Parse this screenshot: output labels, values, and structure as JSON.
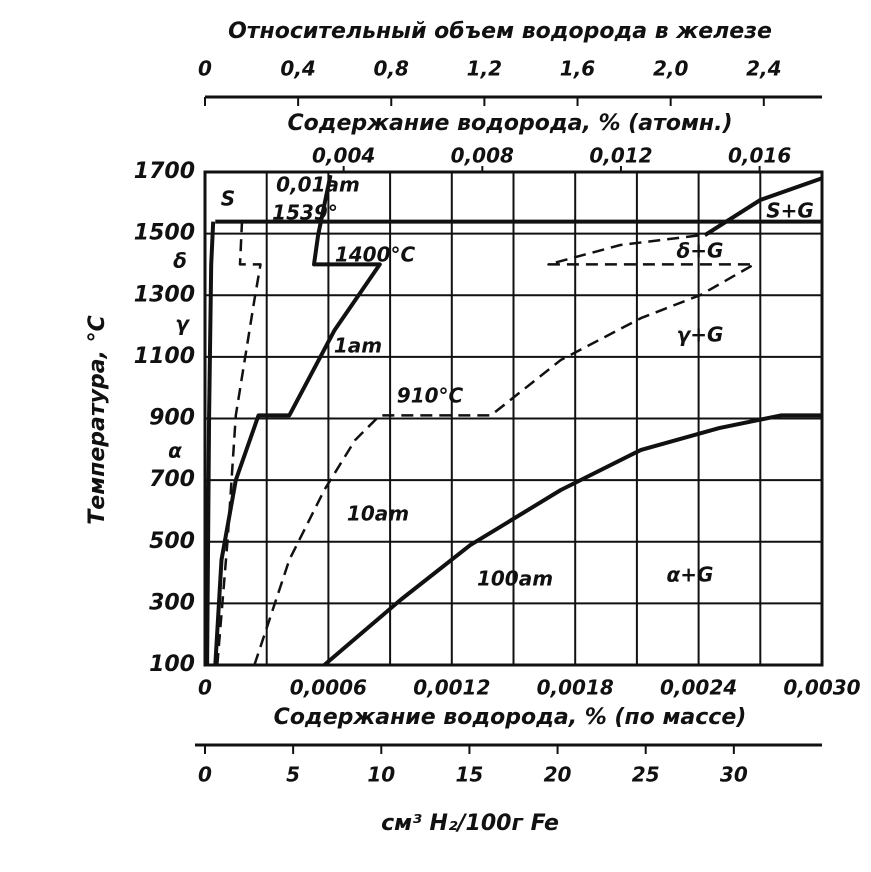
{
  "chart_data": {
    "type": "line",
    "ylabel": "Температура, °C",
    "xlabel": "Содержание водорода, % (по массе)",
    "x2label": "Содержание водорода, % (атомн.)",
    "x3label": "см³ H₂/100г Fe",
    "x4label": "Относительный объем водорода в железе",
    "xlim": [
      0,
      0.003
    ],
    "xticks": [
      0,
      {
        "value": 0.0006,
        "label": "0,0006"
      },
      {
        "value": 0.0012,
        "label": "0,0012"
      },
      {
        "value": 0.0018,
        "label": "0,0018"
      },
      {
        "value": 0.0024,
        "label": "0,0024"
      },
      {
        "value": 0.003,
        "label": "0,0030"
      }
    ],
    "xminorticks": [
      0.0003,
      0.0009,
      0.0015,
      0.0021,
      0.0027
    ],
    "ylim": [
      100,
      1700
    ],
    "yticks": [
      100,
      300,
      500,
      700,
      900,
      1100,
      1300,
      1500,
      1700
    ],
    "x2lim": [
      0,
      0.0178
    ],
    "x2ticks": [
      {
        "value": 0.004,
        "label": "0,004"
      },
      {
        "value": 0.008,
        "label": "0,008"
      },
      {
        "value": 0.012,
        "label": "0,012"
      },
      {
        "value": 0.016,
        "label": "0,016"
      }
    ],
    "x3lim": [
      0,
      35
    ],
    "x3ticks": [
      0,
      5,
      10,
      15,
      20,
      25,
      30
    ],
    "x4lim": [
      0,
      2.65
    ],
    "x4ticks": [
      0,
      {
        "value": 0.4,
        "label": "0,4"
      },
      {
        "value": 0.8,
        "label": "0,8"
      },
      {
        "value": 1.2,
        "label": "1,2"
      },
      {
        "value": 1.6,
        "label": "1,6"
      },
      {
        "value": 2.0,
        "label": "2,0"
      },
      {
        "value": 2.4,
        "label": "2,4"
      }
    ],
    "grid": true,
    "color": "#111111",
    "series": [
      {
        "name": "0,01am",
        "style": "solid",
        "x": [
          1e-05,
          2e-05,
          3e-05,
          4e-05
        ],
        "values": [
          100,
          910,
          1400,
          1539
        ]
      },
      {
        "style": "dashed",
        "x": [
          6e-05,
          0.00011,
          0.00015,
          0.00024,
          0.00027,
          0.00017,
          0.00018
        ],
        "values": [
          100,
          506,
          910,
          1285,
          1400,
          1400,
          1539
        ]
      },
      {
        "name": "1am",
        "style": "solid",
        "x": [
          5e-05,
          8e-05,
          0.00015,
          0.00026,
          0.00041,
          0.00063,
          0.00085,
          0.00053,
          0.00055,
          0.00061
        ],
        "values": [
          100,
          441,
          700,
          910,
          910,
          1187,
          1400,
          1400,
          1495,
          1690
        ]
      },
      {
        "name": "10am",
        "style": "dashed",
        "x": [
          0.00024,
          0.00041,
          0.00058,
          0.00073,
          0.00085,
          0.00139,
          0.00173,
          0.00212,
          0.00241,
          0.00267,
          0.00167,
          0.00202,
          0.00241
        ],
        "values": [
          100,
          441,
          668,
          830,
          910,
          910,
          1090,
          1226,
          1301,
          1400,
          1400,
          1463,
          1495
        ]
      },
      {
        "name": "100am",
        "style": "solid",
        "x": [
          0.00058,
          0.00095,
          0.00129,
          0.00173,
          0.00212,
          0.0025,
          0.0028,
          0.003
        ],
        "values": [
          100,
          311,
          489,
          668,
          798,
          869,
          910,
          910
        ]
      },
      {
        "style": "solid",
        "x": [
          0.00243,
          0.0027,
          0.003
        ],
        "values": [
          1495,
          1609,
          1680
        ]
      },
      {
        "style": "solid",
        "x": [
          5e-05,
          0.003
        ],
        "values": [
          1539,
          1539
        ]
      }
    ],
    "annotations": [
      "S",
      "0,01am",
      "1539°",
      "1400°C",
      "1am",
      "910°C",
      "10am",
      "100am",
      "S+G",
      "δ+G",
      "γ+G",
      "α+G",
      "δ",
      "γ",
      "α"
    ]
  }
}
